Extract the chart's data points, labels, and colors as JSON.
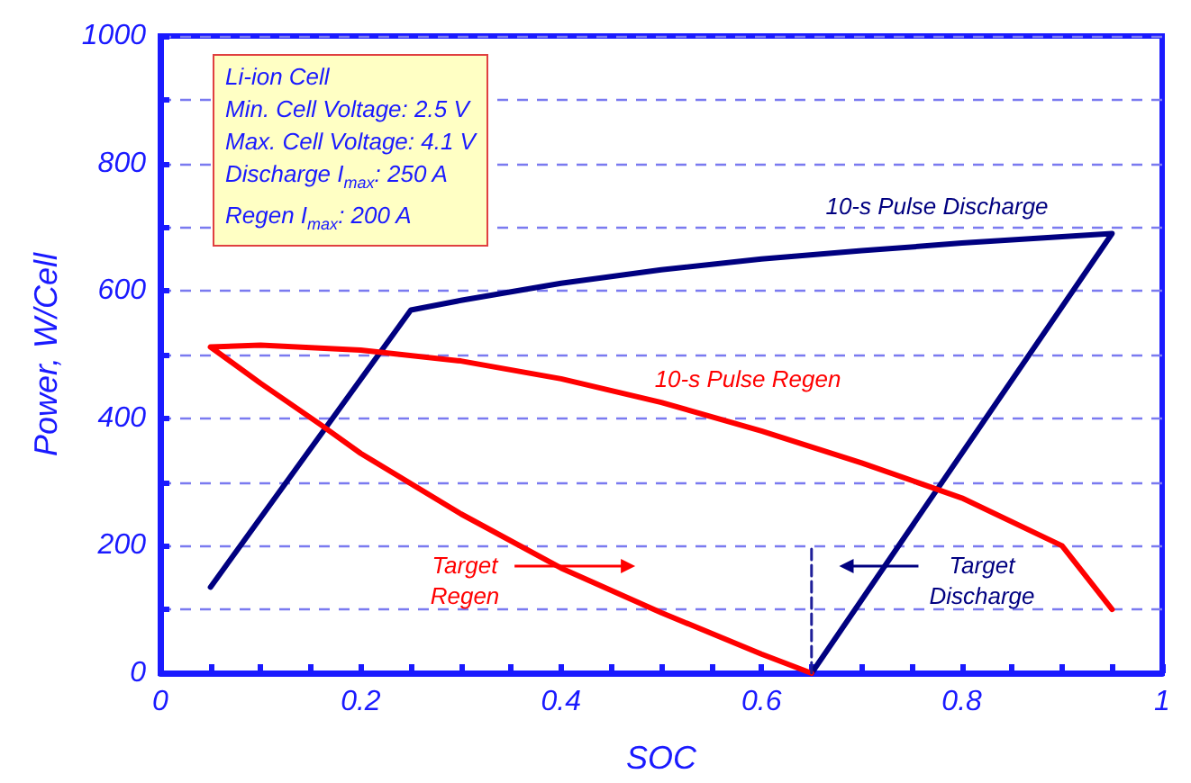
{
  "chart_data": {
    "type": "line",
    "xlabel": "SOC",
    "ylabel": "Power, W/Cell",
    "xlim": [
      0,
      1
    ],
    "ylim": [
      0,
      1000
    ],
    "xticks": [
      0,
      {
        "value": 0.05,
        "label": null
      },
      {
        "value": 0.1,
        "label": null
      },
      {
        "value": 0.15,
        "label": null
      },
      0.2,
      {
        "value": 0.25,
        "label": null
      },
      {
        "value": 0.3,
        "label": null
      },
      {
        "value": 0.35,
        "label": null
      },
      0.4,
      {
        "value": 0.45,
        "label": null
      },
      {
        "value": 0.5,
        "label": null
      },
      {
        "value": 0.55,
        "label": null
      },
      0.6,
      {
        "value": 0.65,
        "label": null
      },
      {
        "value": 0.7,
        "label": null
      },
      {
        "value": 0.75,
        "label": null
      },
      0.8,
      {
        "value": 0.85,
        "label": null
      },
      {
        "value": 0.9,
        "label": null
      },
      {
        "value": 0.95,
        "label": null
      },
      1
    ],
    "yticks": [
      0,
      {
        "value": 100,
        "label": null
      },
      200,
      {
        "value": 300,
        "label": null
      },
      400,
      {
        "value": 500,
        "label": null
      },
      600,
      {
        "value": 700,
        "label": null
      },
      800,
      {
        "value": 900,
        "label": null
      },
      1000
    ],
    "grid": "y",
    "marker": "none",
    "series": [
      {
        "color": "#000080",
        "x": [
          0.05,
          0.25,
          0.3,
          0.4,
          0.5,
          0.6,
          0.7,
          0.8,
          0.9,
          0.95,
          0.65
        ],
        "values": [
          135,
          570,
          585,
          612,
          633,
          650,
          663,
          675,
          685,
          690,
          0
        ]
      },
      {
        "color": "#ff0000",
        "x": [
          0.65,
          0.6,
          0.5,
          0.4,
          0.3,
          0.2,
          0.16,
          0.1,
          0.05,
          0.1,
          0.2,
          0.3,
          0.4,
          0.5,
          0.6,
          0.7,
          0.8,
          0.9,
          0.95
        ],
        "values": [
          0,
          30,
          95,
          165,
          250,
          345,
          390,
          455,
          512,
          515,
          507,
          490,
          462,
          425,
          380,
          330,
          275,
          200,
          100
        ]
      },
      {
        "color": "#1f1f99",
        "line_style": "dashed",
        "x": [
          0.65,
          0.65
        ],
        "values": [
          0,
          200
        ]
      }
    ],
    "annotations": [
      "Li-ion Cell\nMin. Cell Voltage: 2.5 V\nMax. Cell Voltage: 4.1 V\nDischarge I$_{max}$: 250 A\nRegen I$_{max}$: 200 A",
      "10-s Pulse Discharge",
      "10-s Pulse Regen",
      "Target\nRegen",
      "Target\nDischarge"
    ]
  }
}
